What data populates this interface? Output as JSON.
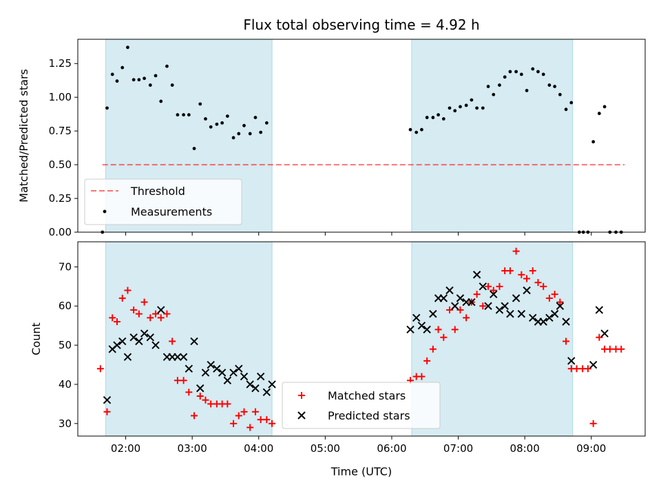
{
  "chart_data": {
    "title": "Flux total observing time = 4.92 h",
    "xlabel": "Time (UTC)",
    "x_unit": "hours UTC",
    "xlim": [
      1.28,
      9.81
    ],
    "x_tick_labels": [
      "02:00",
      "03:00",
      "04:00",
      "05:00",
      "06:00",
      "07:00",
      "08:00",
      "09:00"
    ],
    "shaded_intervals": [
      [
        1.7,
        4.2
      ],
      [
        6.3,
        8.72
      ]
    ],
    "colors": {
      "shade": "#add8e6",
      "threshold": "#ff0000",
      "matched": "#ff0000",
      "predicted": "#000000"
    },
    "panels": [
      {
        "type": "scatter",
        "ylabel": "Matched/Predicted stars",
        "ylim": [
          0,
          1.43
        ],
        "y_tick_labels": [
          "0.00",
          "0.25",
          "0.50",
          "0.75",
          "1.00",
          "1.25"
        ],
        "legend_location": "lower-left",
        "threshold": {
          "name": "Threshold",
          "y": 0.5,
          "x_range": [
            1.65,
            9.5
          ]
        },
        "series": [
          {
            "name": "Measurements",
            "x": [
              1.65,
              1.72,
              1.8,
              1.87,
              1.95,
              2.03,
              2.12,
              2.2,
              2.28,
              2.37,
              2.45,
              2.53,
              2.62,
              2.7,
              2.78,
              2.87,
              2.95,
              3.03,
              3.12,
              3.2,
              3.28,
              3.37,
              3.45,
              3.53,
              3.62,
              3.7,
              3.78,
              3.87,
              3.95,
              4.03,
              4.12,
              6.28,
              6.37,
              6.45,
              6.53,
              6.62,
              6.7,
              6.78,
              6.87,
              6.95,
              7.03,
              7.12,
              7.2,
              7.28,
              7.37,
              7.45,
              7.53,
              7.62,
              7.7,
              7.78,
              7.87,
              7.95,
              8.03,
              8.12,
              8.2,
              8.28,
              8.37,
              8.45,
              8.53,
              8.62,
              8.7,
              8.82,
              8.88,
              8.95,
              9.03,
              9.12,
              9.2,
              9.28,
              9.37,
              9.45
            ],
            "y": [
              0,
              0.92,
              1.17,
              1.12,
              1.22,
              1.37,
              1.13,
              1.13,
              1.14,
              1.09,
              1.16,
              0.97,
              1.23,
              1.09,
              0.87,
              0.87,
              0.87,
              0.62,
              0.95,
              0.84,
              0.78,
              0.8,
              0.81,
              0.86,
              0.7,
              0.73,
              0.79,
              0.73,
              0.85,
              0.74,
              0.81,
              0.76,
              0.74,
              0.76,
              0.85,
              0.85,
              0.87,
              0.84,
              0.92,
              0.9,
              0.93,
              0.94,
              0.98,
              0.92,
              0.92,
              1.08,
              1.02,
              1.09,
              1.15,
              1.19,
              1.19,
              1.17,
              1.05,
              1.21,
              1.19,
              1.17,
              1.09,
              1.08,
              1.02,
              0.91,
              0.96,
              0,
              0,
              0,
              0.67,
              0.88,
              0.93,
              0,
              0,
              0
            ]
          }
        ]
      },
      {
        "type": "scatter",
        "ylabel": "Count",
        "ylim": [
          26.8,
          76.4
        ],
        "y_tick_labels": [
          "30",
          "40",
          "50",
          "60",
          "70"
        ],
        "legend_location": "lower-center",
        "series": [
          {
            "name": "Matched stars",
            "marker": "+",
            "x": [
              1.62,
              1.72,
              1.8,
              1.87,
              1.95,
              2.03,
              2.12,
              2.2,
              2.28,
              2.37,
              2.45,
              2.53,
              2.62,
              2.7,
              2.78,
              2.87,
              2.95,
              3.03,
              3.12,
              3.2,
              3.28,
              3.37,
              3.45,
              3.53,
              3.62,
              3.7,
              3.78,
              3.87,
              3.95,
              4.03,
              4.12,
              4.2,
              6.28,
              6.37,
              6.45,
              6.53,
              6.62,
              6.7,
              6.78,
              6.87,
              6.95,
              7.03,
              7.12,
              7.2,
              7.28,
              7.37,
              7.45,
              7.53,
              7.62,
              7.7,
              7.78,
              7.87,
              7.95,
              8.03,
              8.12,
              8.2,
              8.28,
              8.37,
              8.45,
              8.53,
              8.62,
              8.7,
              8.78,
              8.87,
              8.95,
              9.03,
              9.12,
              9.2,
              9.28,
              9.37,
              9.45
            ],
            "y": [
              44,
              33,
              57,
              56,
              62,
              64,
              59,
              58,
              61,
              57,
              58,
              57,
              58,
              51,
              41,
              41,
              38,
              32,
              37,
              36,
              35,
              35,
              35,
              35,
              30,
              32,
              33,
              29,
              33,
              31,
              31,
              30,
              41,
              42,
              42,
              46,
              49,
              54,
              52,
              59,
              54,
              59,
              57,
              61,
              63,
              60,
              65,
              64,
              65,
              69,
              69,
              74,
              68,
              67,
              69,
              66,
              65,
              62,
              63,
              61,
              51,
              44,
              44,
              44,
              44,
              30,
              52,
              49,
              49,
              49,
              49
            ]
          },
          {
            "name": "Predicted stars",
            "marker": "x",
            "x": [
              1.72,
              1.8,
              1.87,
              1.95,
              2.03,
              2.12,
              2.2,
              2.28,
              2.37,
              2.45,
              2.53,
              2.62,
              2.7,
              2.78,
              2.87,
              2.95,
              3.03,
              3.12,
              3.2,
              3.28,
              3.37,
              3.45,
              3.53,
              3.62,
              3.7,
              3.78,
              3.87,
              3.95,
              4.03,
              4.12,
              4.2,
              6.28,
              6.37,
              6.45,
              6.53,
              6.62,
              6.7,
              6.78,
              6.87,
              6.95,
              7.03,
              7.12,
              7.2,
              7.28,
              7.37,
              7.45,
              7.53,
              7.62,
              7.7,
              7.78,
              7.87,
              7.95,
              8.03,
              8.12,
              8.2,
              8.28,
              8.37,
              8.45,
              8.53,
              8.62,
              8.7,
              9.03,
              9.12,
              9.2
            ],
            "y": [
              36,
              49,
              50,
              51,
              47,
              52,
              51,
              53,
              52,
              50,
              59,
              47,
              47,
              47,
              47,
              44,
              51,
              39,
              43,
              45,
              44,
              43,
              41,
              43,
              44,
              42,
              40,
              39,
              42,
              38,
              40,
              54,
              57,
              55,
              54,
              58,
              62,
              62,
              64,
              60,
              62,
              61,
              61,
              68,
              65,
              60,
              63,
              59,
              60,
              58,
              62,
              58,
              64,
              57,
              56,
              56,
              57,
              58,
              60,
              56,
              46,
              45,
              59,
              53
            ]
          }
        ]
      }
    ]
  }
}
